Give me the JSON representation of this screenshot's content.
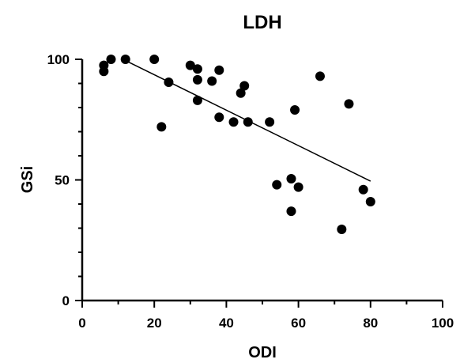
{
  "chart_data": {
    "type": "scatter",
    "title": "LDH",
    "xlabel": "ODI",
    "ylabel": "GSi",
    "xlim": [
      0,
      100
    ],
    "ylim": [
      0,
      100
    ],
    "x_ticks": [
      0,
      20,
      40,
      60,
      80,
      100
    ],
    "y_ticks": [
      0,
      50,
      100
    ],
    "x_tick_labels": [
      "0",
      "20",
      "40",
      "60",
      "80",
      "100"
    ],
    "y_tick_labels": [
      "0",
      "50",
      "100"
    ],
    "grid": false,
    "series": [
      {
        "points": [
          [
            6,
            95
          ],
          [
            6,
            97.5
          ],
          [
            8,
            100
          ],
          [
            12,
            100
          ],
          [
            20,
            100
          ],
          [
            22,
            72
          ],
          [
            24,
            90.5
          ],
          [
            30,
            97.5
          ],
          [
            32,
            96
          ],
          [
            32,
            91.5
          ],
          [
            32,
            83
          ],
          [
            36,
            91
          ],
          [
            38,
            95.5
          ],
          [
            38,
            76
          ],
          [
            42,
            74
          ],
          [
            44,
            86
          ],
          [
            45,
            89
          ],
          [
            46,
            74
          ],
          [
            52,
            74
          ],
          [
            54,
            48
          ],
          [
            58,
            50.5
          ],
          [
            58,
            37
          ],
          [
            59,
            79
          ],
          [
            60,
            47
          ],
          [
            66,
            93
          ],
          [
            72,
            29.5
          ],
          [
            74,
            81.5
          ],
          [
            78,
            46
          ],
          [
            80,
            41
          ]
        ],
        "color": "#000000"
      }
    ],
    "trendline": {
      "x": [
        12,
        80
      ],
      "y": [
        99.5,
        49.5
      ]
    }
  }
}
